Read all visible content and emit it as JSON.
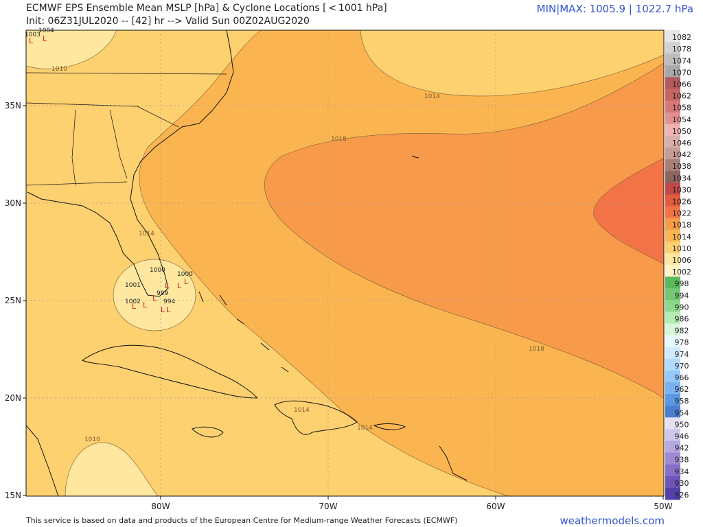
{
  "header": {
    "title_line1": "ECMWF EPS Ensemble Mean MSLP [hPa] & Cyclone Locations [ < 1001 hPa]",
    "title_line2": "Init: 06Z31JUL2020 -- [42] hr --> Valid Sun 00Z02AUG2020",
    "minmax": "MIN|MAX: 1005.9 | 1022.7 hPa"
  },
  "axes": {
    "lat_labels": [
      "35N",
      "30N",
      "25N",
      "20N",
      "15N"
    ],
    "lon_labels": [
      "80W",
      "70W",
      "60W",
      "50W"
    ]
  },
  "isobars": {
    "labels": [
      "1010",
      "1010",
      "1014",
      "1014",
      "1014",
      "1014",
      "1018",
      "1018"
    ]
  },
  "cyclones": {
    "marker": "L",
    "numbers": [
      "1003",
      "1004",
      "1000",
      "994",
      "1001",
      "1002",
      "1000",
      "999"
    ]
  },
  "colorbar": {
    "levels": [
      "1082",
      "1078",
      "1074",
      "1070",
      "1066",
      "1062",
      "1058",
      "1054",
      "1050",
      "1046",
      "1042",
      "1038",
      "1034",
      "1030",
      "1026",
      "1022",
      "1018",
      "1014",
      "1010",
      "1006",
      "1002",
      "998",
      "994",
      "990",
      "986",
      "982",
      "978",
      "974",
      "970",
      "966",
      "962",
      "958",
      "954",
      "950",
      "946",
      "942",
      "938",
      "934",
      "930",
      "926"
    ],
    "colors": [
      "#e6e6e6",
      "#d2d2d2",
      "#bdbdbd",
      "#a8a8a8",
      "#b45a5a",
      "#c86464",
      "#d77878",
      "#e49090",
      "#efb4b4",
      "#d8b0aa",
      "#c69c94",
      "#a8807a",
      "#8c6460",
      "#c04848",
      "#e05a3c",
      "#f27346",
      "#f79a4a",
      "#fbb550",
      "#fdd070",
      "#ffe7a0",
      "#fff4c8",
      "#5cb85c",
      "#74c874",
      "#8cd88c",
      "#b4ecb4",
      "#d8f6d8",
      "#e8f8ff",
      "#cfeaff",
      "#b2dbff",
      "#95c9f9",
      "#78b2f0",
      "#5a98e2",
      "#4a7fd0",
      "#e6e0f4",
      "#cfc6ec",
      "#b6a9e0",
      "#9d8cd4",
      "#8470c6",
      "#6c56b8",
      "#5440a8"
    ]
  },
  "footer": {
    "attribution": "This service is based on data and products of the European Centre for Medium-range Weather Forecasts (ECMWF)",
    "brand": "weathermodels.com"
  }
}
